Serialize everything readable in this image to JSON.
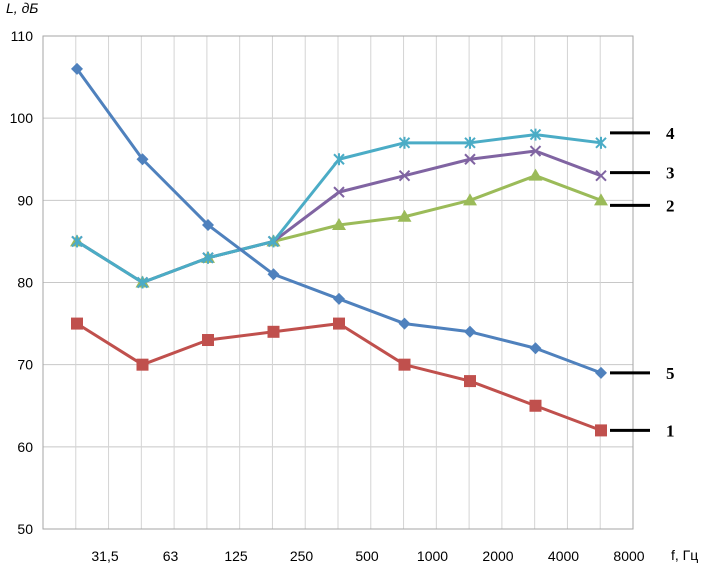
{
  "chart_data": {
    "type": "line",
    "title": "",
    "ylabel": "L, дБ",
    "xlabel": "f, Гц",
    "ylim": [
      50,
      110
    ],
    "yticks": [
      50,
      60,
      70,
      80,
      90,
      100,
      110
    ],
    "x_tick_labels": [
      "31,5",
      "63",
      "125",
      "250",
      "500",
      "1000",
      "2000",
      "4000",
      "8000"
    ],
    "grid": true,
    "series": [
      {
        "name": "1",
        "color": "#c0504d",
        "marker": "square",
        "values": [
          75,
          70,
          73,
          74,
          75,
          70,
          68,
          65,
          62
        ]
      },
      {
        "name": "2",
        "color": "#9bbb59",
        "marker": "triangle",
        "values": [
          85,
          80,
          83,
          85,
          87,
          88,
          90,
          93,
          90
        ]
      },
      {
        "name": "3",
        "color": "#8064a2",
        "marker": "x",
        "values": [
          85,
          80,
          83,
          85,
          91,
          93,
          95,
          96,
          93
        ]
      },
      {
        "name": "4",
        "color": "#4bacc6",
        "marker": "star",
        "values": [
          85,
          80,
          83,
          85,
          95,
          97,
          97,
          98,
          97
        ]
      },
      {
        "name": "5",
        "color": "#4f81bd",
        "marker": "diamond",
        "values": [
          106,
          95,
          87,
          81,
          78,
          75,
          74,
          72,
          69
        ]
      }
    ]
  }
}
